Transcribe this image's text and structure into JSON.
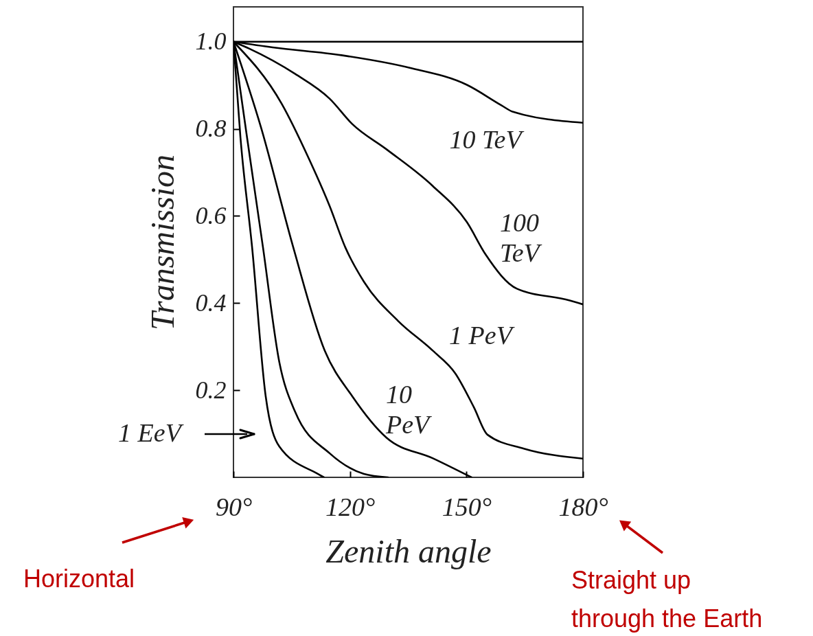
{
  "chart_data": {
    "type": "line",
    "xlabel": "Zenith angle",
    "ylabel": "Transmission",
    "xlim": [
      90,
      180
    ],
    "ylim": [
      0,
      1.08
    ],
    "xticks": [
      {
        "value": 90,
        "label": "90°"
      },
      {
        "value": 120,
        "label": "120°"
      },
      {
        "value": 150,
        "label": "150°"
      },
      {
        "value": 180,
        "label": "180°"
      }
    ],
    "yticks": [
      0.2,
      0.4,
      0.6,
      0.8,
      {
        "value": 1,
        "label": "1.0"
      }
    ],
    "grid": false,
    "line_style": "solid",
    "marker": "none",
    "series": [
      {
        "color": "#000000",
        "x": [
          90,
          180
        ],
        "values": [
          1,
          1
        ]
      },
      {
        "name": "10 TeV",
        "color": "#000000",
        "x": [
          90,
          100.1,
          117.8,
          135.4,
          150.1,
          159.0,
          162.0,
          180
        ],
        "values": [
          1,
          0.987,
          0.969,
          0.94,
          0.901,
          0.854,
          0.839,
          0.814
        ]
      },
      {
        "name": "100 TeV",
        "color": "#000000",
        "x": [
          90,
          94.1,
          105.9,
          114.8,
          120.6,
          129.4,
          141.3,
          150.1,
          154.9,
          163.0,
          176.6,
          180
        ],
        "values": [
          1,
          0.984,
          0.926,
          0.869,
          0.811,
          0.753,
          0.669,
          0.586,
          0.512,
          0.433,
          0.406,
          0.397
        ]
      },
      {
        "name": "1 PeV",
        "color": "#000000",
        "x": [
          90,
          102.4,
          109.4,
          114.8,
          118.8,
          123.6,
          132.4,
          141.3,
          147.1,
          151.9,
          155.4,
          164.8,
          180
        ],
        "values": [
          1,
          0.858,
          0.732,
          0.622,
          0.528,
          0.449,
          0.359,
          0.291,
          0.239,
          0.161,
          0.098,
          0.066,
          0.043
        ]
      },
      {
        "name": "10 PeV",
        "color": "#000000",
        "x": [
          90,
          97.1,
          105.4,
          113.5,
          120.6,
          129.4,
          141.3,
          151.3
        ],
        "values": [
          1,
          0.803,
          0.528,
          0.291,
          0.186,
          0.091,
          0.044,
          0
        ]
      },
      {
        "color": "#000000",
        "x": [
          90,
          93.5,
          97.6,
          101.8,
          105.9,
          114.8,
          123.6,
          129.8
        ],
        "values": [
          1,
          0.78,
          0.528,
          0.265,
          0.15,
          0.055,
          0.008,
          0
        ]
      },
      {
        "name": "1 EeV",
        "color": "#000000",
        "x": [
          90,
          91.8,
          94.8,
          98.3,
          101.8,
          111.7,
          113.3
        ],
        "values": [
          1,
          0.78,
          0.528,
          0.186,
          0.071,
          0.008,
          0
        ]
      }
    ],
    "annotations": [
      "Horizontal",
      "Straight up through the Earth"
    ]
  }
}
